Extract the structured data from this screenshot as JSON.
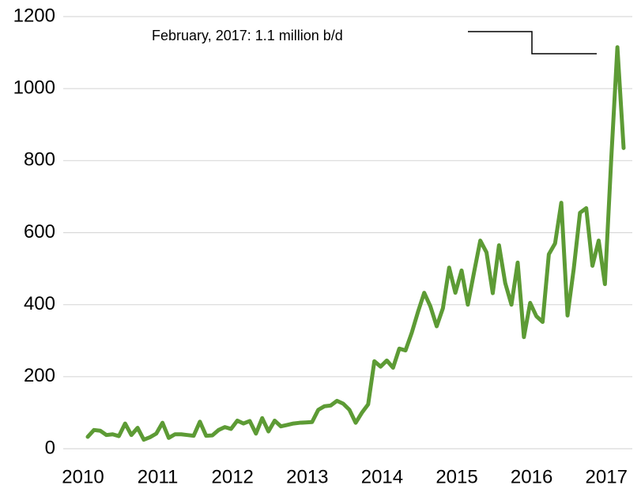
{
  "chart_data": {
    "type": "line",
    "annotation": "February, 2017: 1.1 million b/d",
    "categories": [
      "2010",
      null,
      null,
      null,
      null,
      null,
      null,
      null,
      null,
      null,
      null,
      null,
      "2011",
      null,
      null,
      null,
      null,
      null,
      null,
      null,
      null,
      null,
      null,
      null,
      "2012",
      null,
      null,
      null,
      null,
      null,
      null,
      null,
      null,
      null,
      null,
      null,
      "2013",
      null,
      null,
      null,
      null,
      null,
      null,
      null,
      null,
      null,
      null,
      null,
      "2014",
      null,
      null,
      null,
      null,
      null,
      null,
      null,
      null,
      null,
      null,
      null,
      "2015",
      null,
      null,
      null,
      null,
      null,
      null,
      null,
      null,
      null,
      null,
      null,
      "2016",
      null,
      null,
      null,
      null,
      null,
      null,
      null,
      null,
      null,
      null,
      null,
      "2017",
      null,
      null
    ],
    "series": [
      {
        "color": "#5d9b35",
        "values": [
          33,
          52,
          50,
          38,
          40,
          35,
          70,
          38,
          58,
          25,
          32,
          42,
          72,
          30,
          40,
          40,
          38,
          36,
          75,
          36,
          37,
          52,
          60,
          55,
          78,
          70,
          77,
          42,
          85,
          48,
          78,
          62,
          66,
          70,
          72,
          73,
          74,
          108,
          118,
          120,
          133,
          125,
          108,
          72,
          100,
          123,
          243,
          228,
          245,
          225,
          278,
          273,
          322,
          380,
          433,
          395,
          340,
          390,
          503,
          433,
          495,
          400,
          490,
          578,
          545,
          432,
          565,
          460,
          400,
          517,
          310,
          405,
          368,
          352,
          540,
          570,
          683,
          370,
          500,
          655,
          668,
          508,
          578,
          457,
          800,
          1115,
          835
        ]
      }
    ],
    "ylim": [
      0,
      1200
    ],
    "yticks": [
      0,
      200,
      400,
      600,
      800,
      1000,
      1200
    ],
    "grid": true
  }
}
